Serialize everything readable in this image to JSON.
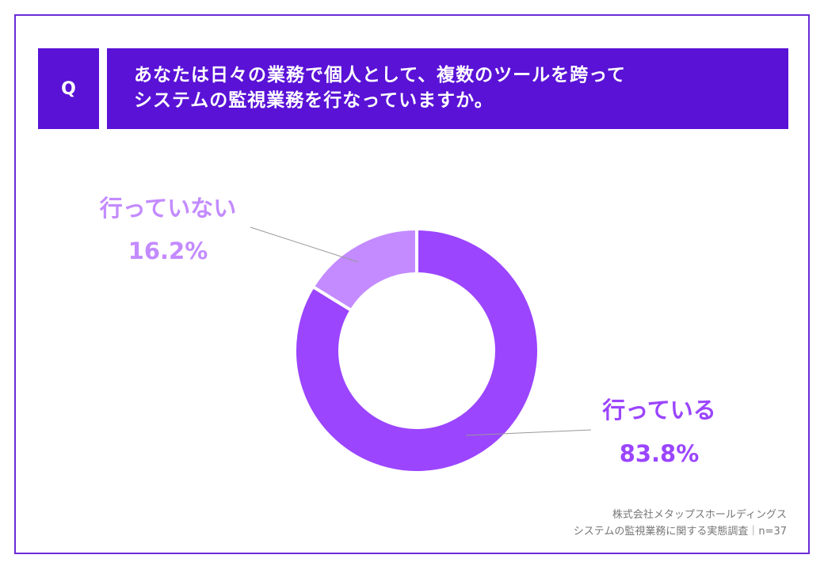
{
  "question": {
    "badge": "Q",
    "line1": "あなたは日々の業務で個人として、複数のツールを跨って",
    "line2": "システムの監視業務を行なっていますか。"
  },
  "colors": {
    "frame": "#6a2bd9",
    "header": "#5a12d6",
    "yes": "#9b45ff",
    "no": "#c38bff",
    "yes_text": "#9b45ff",
    "no_text": "#c38bff"
  },
  "chart_data": {
    "type": "pie",
    "donut": true,
    "slices": [
      {
        "label": "行っている",
        "value": 83.8,
        "display": "83.8%"
      },
      {
        "label": "行っていない",
        "value": 16.2,
        "display": "16.2%"
      }
    ]
  },
  "source": {
    "line1": "株式会社メタップスホールディングス",
    "line2": "システムの監視業務に関する実態調査｜n=37"
  }
}
